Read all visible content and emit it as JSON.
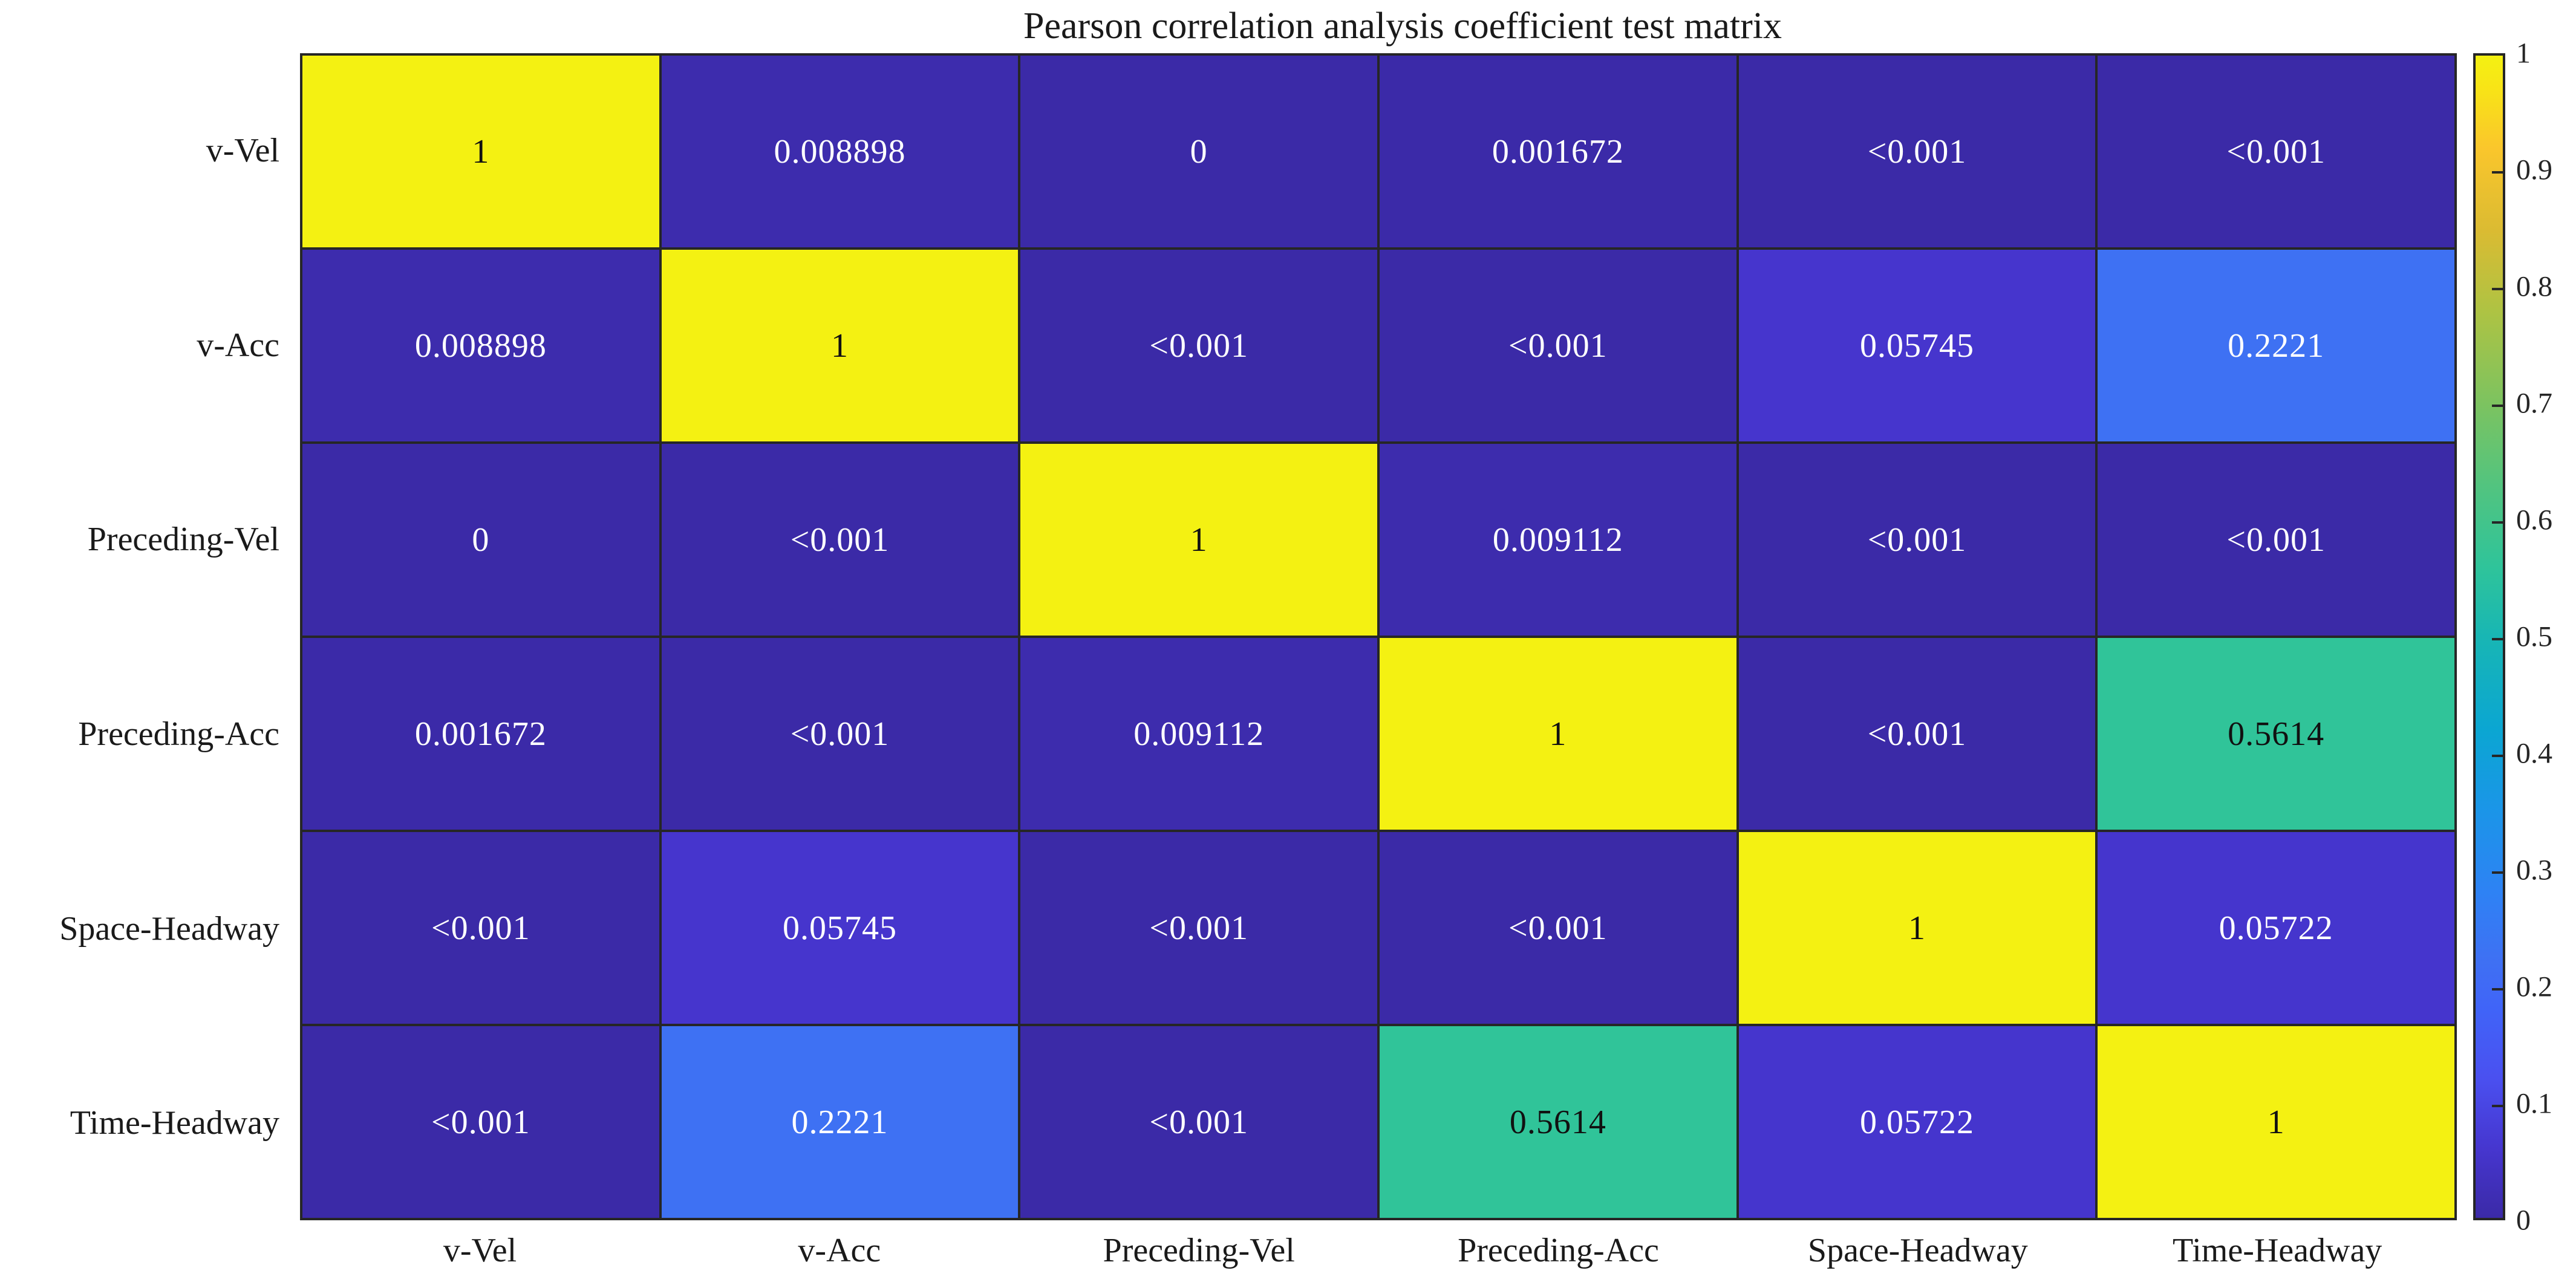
{
  "figure": {
    "background": "#ffffff"
  },
  "chart_data": {
    "type": "heatmap",
    "title": "Pearson correlation analysis coefficient test matrix",
    "categories": [
      "v-Vel",
      "v-Acc",
      "Preceding-Vel",
      "Preceding-Acc",
      "Space-Headway",
      "Time-Headway"
    ],
    "rows": [
      {
        "label": "v-Vel",
        "display": [
          "1",
          "0.008898",
          "0",
          "0.001672",
          "<0.001",
          "<0.001"
        ],
        "values": [
          1,
          0.008898,
          0,
          0.001672,
          0.0005,
          0.0005
        ]
      },
      {
        "label": "v-Acc",
        "display": [
          "0.008898",
          "1",
          "<0.001",
          "<0.001",
          "0.05745",
          "0.2221"
        ],
        "values": [
          0.008898,
          1,
          0.0005,
          0.0005,
          0.05745,
          0.2221
        ]
      },
      {
        "label": "Preceding-Vel",
        "display": [
          "0",
          "<0.001",
          "1",
          "0.009112",
          "<0.001",
          "<0.001"
        ],
        "values": [
          0,
          0.0005,
          1,
          0.009112,
          0.0005,
          0.0005
        ]
      },
      {
        "label": "Preceding-Acc",
        "display": [
          "0.001672",
          "<0.001",
          "0.009112",
          "1",
          "<0.001",
          "0.5614"
        ],
        "values": [
          0.001672,
          0.0005,
          0.009112,
          1,
          0.0005,
          0.5614
        ]
      },
      {
        "label": "Space-Headway",
        "display": [
          "<0.001",
          "0.05745",
          "<0.001",
          "<0.001",
          "1",
          "0.05722"
        ],
        "values": [
          0.0005,
          0.05745,
          0.0005,
          0.0005,
          1,
          0.05722
        ]
      },
      {
        "label": "Time-Headway",
        "display": [
          "<0.001",
          "0.2221",
          "<0.001",
          "0.5614",
          "0.05722",
          "1"
        ],
        "values": [
          0.0005,
          0.2221,
          0.0005,
          0.5614,
          0.05722,
          1
        ]
      }
    ],
    "colorbar": {
      "min": 0,
      "max": 1,
      "tick_step": 0.1,
      "tick_labels": [
        "0",
        "0.1",
        "0.2",
        "0.3",
        "0.4",
        "0.5",
        "0.6",
        "0.7",
        "0.8",
        "0.9",
        "1"
      ],
      "position": "right"
    },
    "colormap": {
      "name": "parula",
      "stops": [
        [
          0.0,
          "#3b2aa7"
        ],
        [
          0.06,
          "#4636cf"
        ],
        [
          0.12,
          "#4a50f0"
        ],
        [
          0.18,
          "#4064f8"
        ],
        [
          0.22,
          "#3f70f3"
        ],
        [
          0.28,
          "#2e82f4"
        ],
        [
          0.35,
          "#1b95e8"
        ],
        [
          0.42,
          "#0ba6d2"
        ],
        [
          0.5,
          "#18b6b4"
        ],
        [
          0.56,
          "#2fc49a"
        ],
        [
          0.63,
          "#52c47f"
        ],
        [
          0.7,
          "#7cc360"
        ],
        [
          0.78,
          "#aec343"
        ],
        [
          0.85,
          "#dbbb32"
        ],
        [
          0.92,
          "#fac62c"
        ],
        [
          0.97,
          "#f8e317"
        ],
        [
          1.0,
          "#f4f112"
        ]
      ]
    },
    "cell_text_colors": {
      "light": "#ffffff",
      "dark": "#111111",
      "dark_text_threshold": 0.4
    },
    "grid_color": "#262626",
    "axis_label_color": "#1a1a1a",
    "grid_on": true,
    "xlim": null,
    "ylim": [
      0,
      1
    ]
  }
}
